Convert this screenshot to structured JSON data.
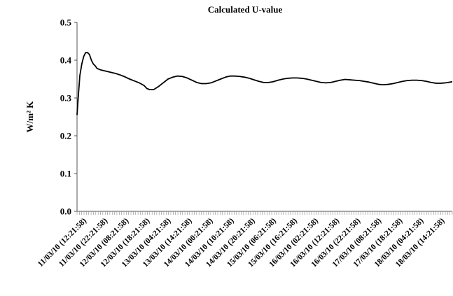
{
  "chart_data": {
    "type": "line",
    "title": "Calculated U-value",
    "ylabel": "W/m² K",
    "xlabel": "",
    "ylim": [
      0.0,
      0.5
    ],
    "yticks": [
      "0.0",
      "0.1",
      "0.2",
      "0.3",
      "0.4",
      "0.5"
    ],
    "grid": false,
    "x_ticks": [
      "11/03/10 (12:21:58)",
      "11/03/10 (22:21:58)",
      "12/03/10 (08:21:58)",
      "12/03/10 (18:21:58)",
      "13/03/10 (04:21:58)",
      "13/03/10 (14:21:58)",
      "14/03/10 (00:21:58)",
      "14/03/10 (10:21:58)",
      "14/03/10 (20:21:58)",
      "15/03/10 (06:21:58)",
      "15/03/10 (16:21:58)",
      "16/03/10 (02:21:58)",
      "16/03/10 (12:21:58)",
      "16/03/10 (22:21:58)",
      "17/03/10 (08:21:58)",
      "17/03/10 (18:21:58)",
      "18/03/10 (04:21:58)",
      "18/03/10 (14:21:58)"
    ],
    "series": [
      {
        "color": "#000000",
        "points": [
          [
            0.0,
            0.255
          ],
          [
            0.15,
            0.31
          ],
          [
            0.3,
            0.36
          ],
          [
            0.5,
            0.39
          ],
          [
            0.7,
            0.41
          ],
          [
            0.9,
            0.42
          ],
          [
            1.1,
            0.42
          ],
          [
            1.3,
            0.415
          ],
          [
            1.5,
            0.4
          ],
          [
            1.7,
            0.39
          ],
          [
            1.9,
            0.385
          ],
          [
            2.1,
            0.378
          ],
          [
            2.5,
            0.374
          ],
          [
            3.0,
            0.371
          ],
          [
            3.5,
            0.368
          ],
          [
            4.0,
            0.365
          ],
          [
            4.5,
            0.361
          ],
          [
            5.0,
            0.356
          ],
          [
            5.5,
            0.35
          ],
          [
            6.0,
            0.345
          ],
          [
            6.5,
            0.34
          ],
          [
            7.0,
            0.333
          ],
          [
            7.3,
            0.325
          ],
          [
            7.6,
            0.322
          ],
          [
            8.0,
            0.322
          ],
          [
            8.5,
            0.33
          ],
          [
            9.0,
            0.34
          ],
          [
            9.5,
            0.35
          ],
          [
            10.0,
            0.355
          ],
          [
            10.5,
            0.358
          ],
          [
            11.0,
            0.357
          ],
          [
            11.5,
            0.353
          ],
          [
            12.0,
            0.347
          ],
          [
            12.5,
            0.341
          ],
          [
            13.0,
            0.338
          ],
          [
            13.5,
            0.338
          ],
          [
            14.0,
            0.34
          ],
          [
            14.5,
            0.345
          ],
          [
            15.0,
            0.35
          ],
          [
            15.5,
            0.355
          ],
          [
            16.0,
            0.358
          ],
          [
            16.5,
            0.358
          ],
          [
            17.0,
            0.357
          ],
          [
            17.5,
            0.355
          ],
          [
            18.0,
            0.352
          ],
          [
            18.5,
            0.348
          ],
          [
            19.0,
            0.344
          ],
          [
            19.5,
            0.341
          ],
          [
            20.0,
            0.341
          ],
          [
            20.5,
            0.343
          ],
          [
            21.0,
            0.347
          ],
          [
            21.5,
            0.35
          ],
          [
            22.0,
            0.352
          ],
          [
            22.5,
            0.353
          ],
          [
            23.0,
            0.353
          ],
          [
            23.5,
            0.352
          ],
          [
            24.0,
            0.35
          ],
          [
            24.5,
            0.347
          ],
          [
            25.0,
            0.344
          ],
          [
            25.5,
            0.341
          ],
          [
            26.0,
            0.34
          ],
          [
            26.5,
            0.341
          ],
          [
            27.0,
            0.344
          ],
          [
            27.5,
            0.347
          ],
          [
            28.0,
            0.349
          ],
          [
            28.5,
            0.348
          ],
          [
            29.0,
            0.347
          ],
          [
            29.5,
            0.346
          ],
          [
            30.0,
            0.344
          ],
          [
            30.5,
            0.342
          ],
          [
            31.0,
            0.339
          ],
          [
            31.5,
            0.336
          ],
          [
            32.0,
            0.335
          ],
          [
            32.5,
            0.336
          ],
          [
            33.0,
            0.338
          ],
          [
            33.5,
            0.341
          ],
          [
            34.0,
            0.344
          ],
          [
            34.5,
            0.346
          ],
          [
            35.0,
            0.347
          ],
          [
            35.5,
            0.347
          ],
          [
            36.0,
            0.346
          ],
          [
            36.5,
            0.344
          ],
          [
            37.0,
            0.341
          ],
          [
            37.5,
            0.339
          ],
          [
            38.0,
            0.339
          ],
          [
            38.5,
            0.34
          ],
          [
            39.0,
            0.342
          ],
          [
            39.2,
            0.343
          ]
        ]
      }
    ]
  }
}
